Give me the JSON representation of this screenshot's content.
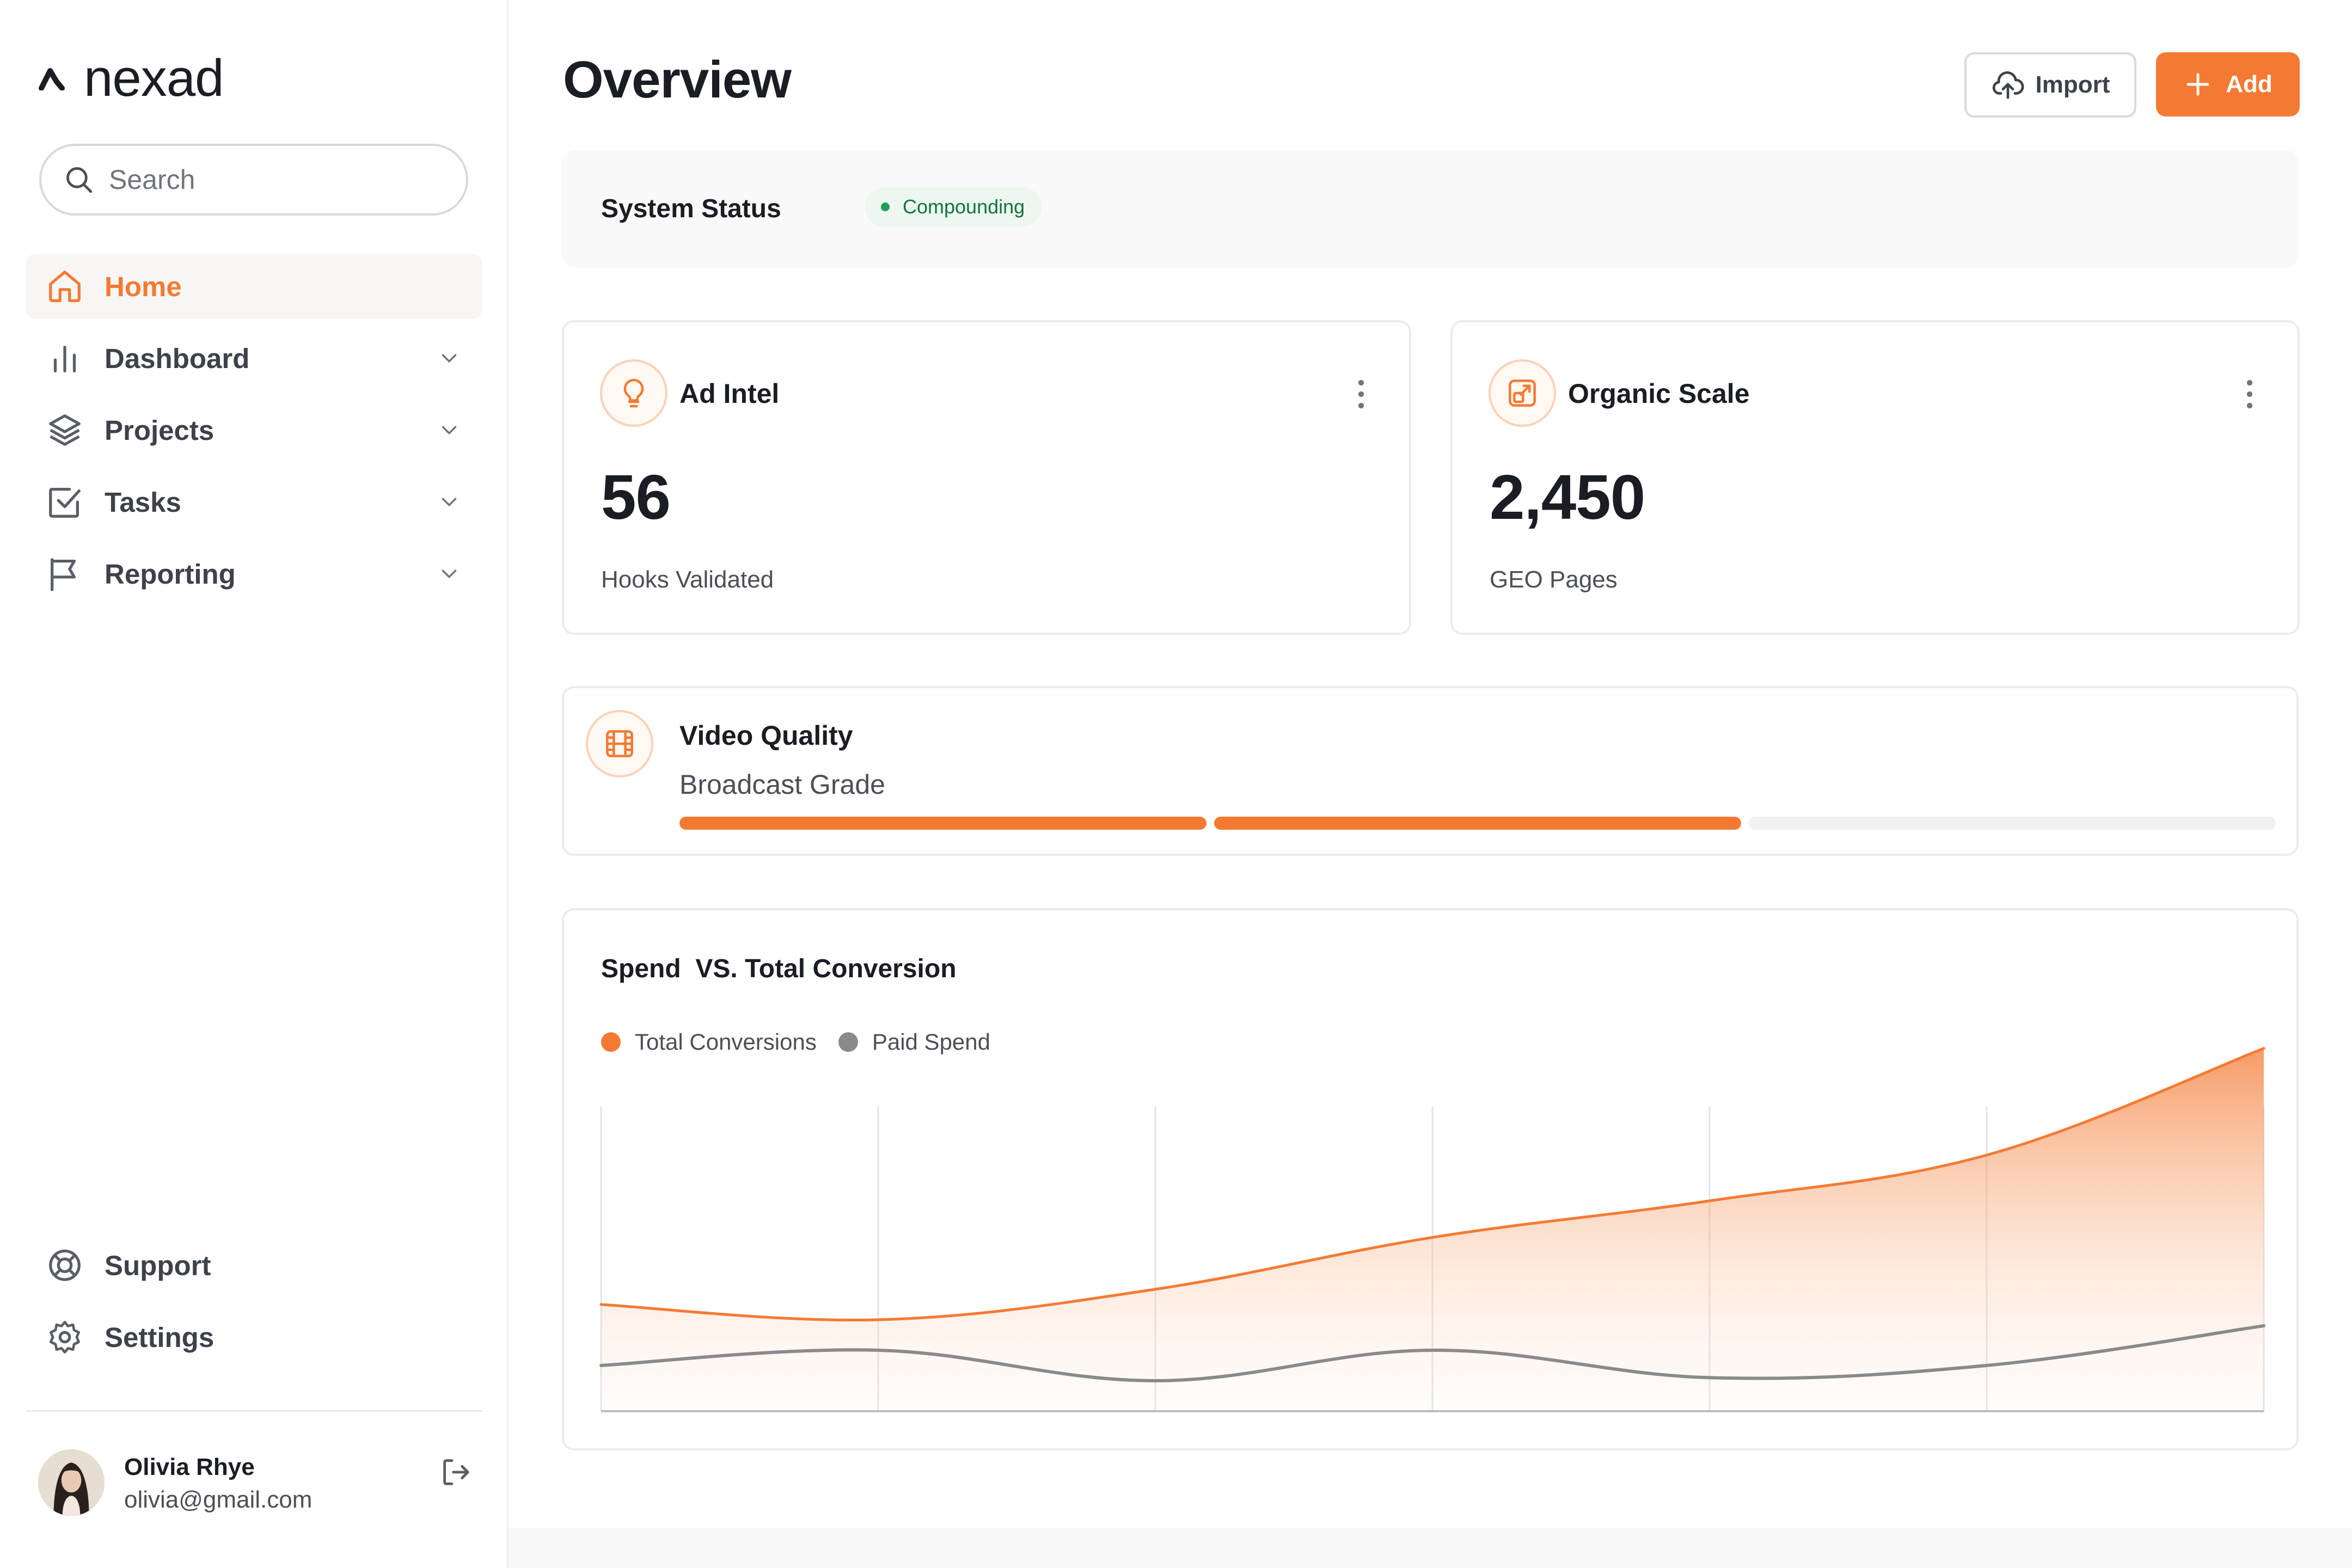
{
  "brand": {
    "name": "nexad",
    "accent": "#f47a33"
  },
  "search": {
    "placeholder": "Search"
  },
  "sidebar": {
    "items": [
      {
        "label": "Home",
        "icon": "home-icon",
        "active": true
      },
      {
        "label": "Dashboard",
        "icon": "bar-chart-icon",
        "expandable": true
      },
      {
        "label": "Projects",
        "icon": "layers-icon",
        "expandable": true
      },
      {
        "label": "Tasks",
        "icon": "check-square-icon",
        "expandable": true
      },
      {
        "label": "Reporting",
        "icon": "flag-icon",
        "expandable": true
      }
    ],
    "bottom_items": [
      {
        "label": "Support",
        "icon": "life-buoy-icon"
      },
      {
        "label": "Settings",
        "icon": "gear-icon"
      }
    ]
  },
  "user": {
    "name": "Olivia Rhye",
    "email": "olivia@gmail.com"
  },
  "header": {
    "title": "Overview",
    "import_label": "Import",
    "add_label": "Add"
  },
  "system_status": {
    "title": "System Status",
    "badge": "Compounding",
    "badge_color": "#1ea05a"
  },
  "stats": [
    {
      "title": "Ad Intel",
      "value": "56",
      "caption": "Hooks Validated",
      "icon": "lightbulb-icon"
    },
    {
      "title": "Organic Scale",
      "value": "2,450",
      "caption": "GEO Pages",
      "icon": "external-link-icon"
    }
  ],
  "video_quality": {
    "title": "Video Quality",
    "subtitle": "Broadcast Grade",
    "icon": "film-icon",
    "segments_total": 3,
    "segments_filled": 2
  },
  "chart_data": {
    "type": "area",
    "title": "Spend  VS. Total Conversion",
    "xlabel": "",
    "ylabel": "",
    "grid": true,
    "legend_position": "top-left",
    "x": [
      0,
      1,
      2,
      3,
      4,
      5,
      6
    ],
    "ylim": [
      0,
      100
    ],
    "series": [
      {
        "name": "Total Conversions",
        "color": "#f47a33",
        "values": [
          35,
          30,
          40,
          57,
          69,
          84,
          119
        ]
      },
      {
        "name": "Paid Spend",
        "color": "#8a8a8a",
        "values": [
          15,
          20,
          10,
          20,
          11,
          15,
          28
        ]
      }
    ]
  }
}
